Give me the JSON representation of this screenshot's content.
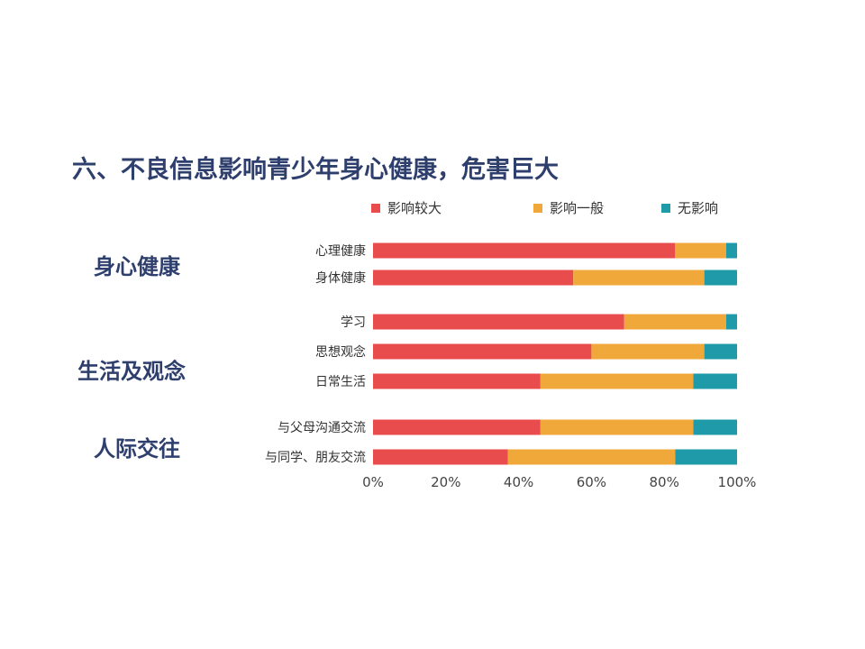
{
  "title": "六、不良信息影响青少年身心健康，危害巨大",
  "legend": [
    {
      "label": "影响较大",
      "color": "#e84c4c"
    },
    {
      "label": "影响一般",
      "color": "#f0a83a"
    },
    {
      "label": "无影响",
      "color": "#1f9aa8"
    }
  ],
  "groups": [
    {
      "label": "身心健康"
    },
    {
      "label": "生活及观念"
    },
    {
      "label": "人际交往"
    }
  ],
  "chart_data": {
    "type": "bar",
    "orientation": "horizontal",
    "stacked": true,
    "categories": [
      "心理健康",
      "身体健康",
      "学习",
      "思想观念",
      "日常生活",
      "与父母沟通交流",
      "与同学、朋友交流"
    ],
    "category_groups": [
      "身心健康",
      "身心健康",
      "生活及观念",
      "生活及观念",
      "生活及观念",
      "人际交往",
      "人际交往"
    ],
    "series": [
      {
        "name": "影响较大",
        "color": "#e84c4c",
        "values": [
          83,
          55,
          69,
          60,
          46,
          46,
          37
        ]
      },
      {
        "name": "影响一般",
        "color": "#f0a83a",
        "values": [
          14,
          36,
          28,
          31,
          42,
          42,
          46
        ]
      },
      {
        "name": "无影响",
        "color": "#1f9aa8",
        "values": [
          3,
          9,
          3,
          9,
          12,
          12,
          17
        ]
      }
    ],
    "x_ticks": [
      "0%",
      "20%",
      "40%",
      "60%",
      "80%",
      "100%"
    ],
    "xlim": [
      0,
      100
    ],
    "grid": false,
    "legend_position": "top"
  }
}
